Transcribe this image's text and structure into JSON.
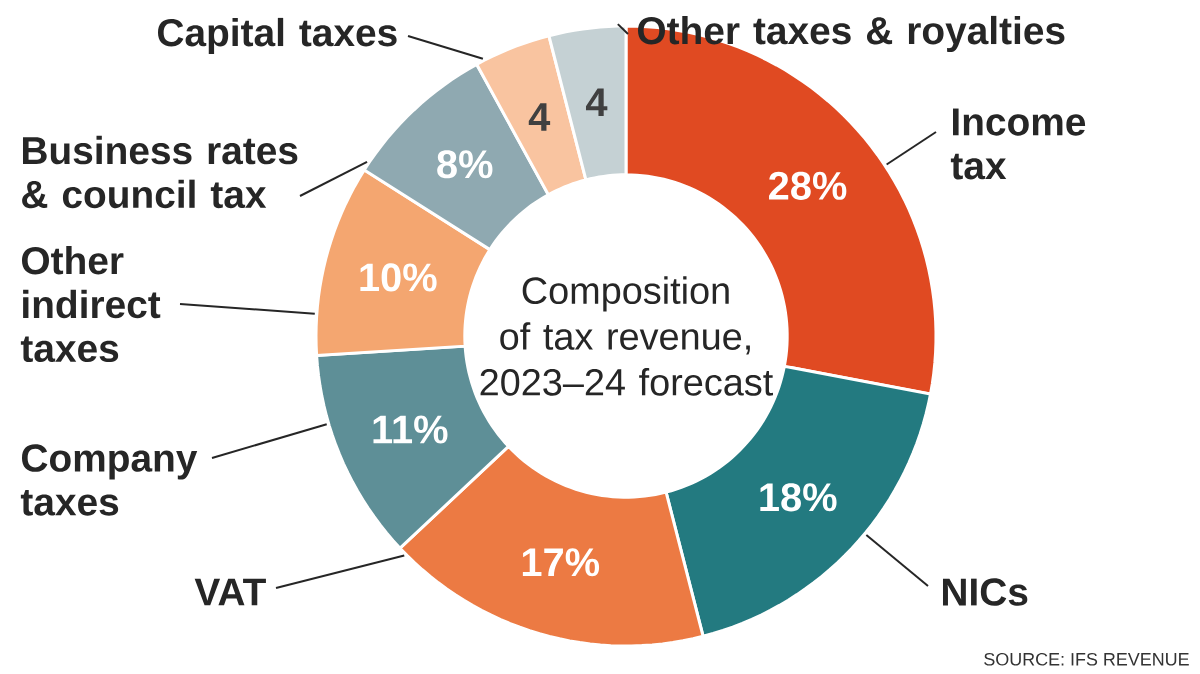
{
  "chart_data": {
    "type": "donut",
    "title": "Composition of tax revenue, 2023–24 forecast",
    "categories": [
      "Income tax",
      "NICs",
      "VAT",
      "Company taxes",
      "Other indirect taxes",
      "Business rates & council tax",
      "Capital taxes",
      "Other taxes & royalties"
    ],
    "values": [
      28,
      18,
      17,
      11,
      10,
      8,
      4,
      4
    ],
    "value_labels": [
      "28%",
      "18%",
      "17%",
      "11%",
      "10%",
      "8%",
      "4",
      "4"
    ],
    "colors": [
      "#e04a22",
      "#237a80",
      "#ec7a43",
      "#5e8f97",
      "#f4a670",
      "#8fa9b1",
      "#f9c4a0",
      "#c5d1d4"
    ],
    "annotations": [
      "SOURCE: IFS REVENUE"
    ]
  }
}
